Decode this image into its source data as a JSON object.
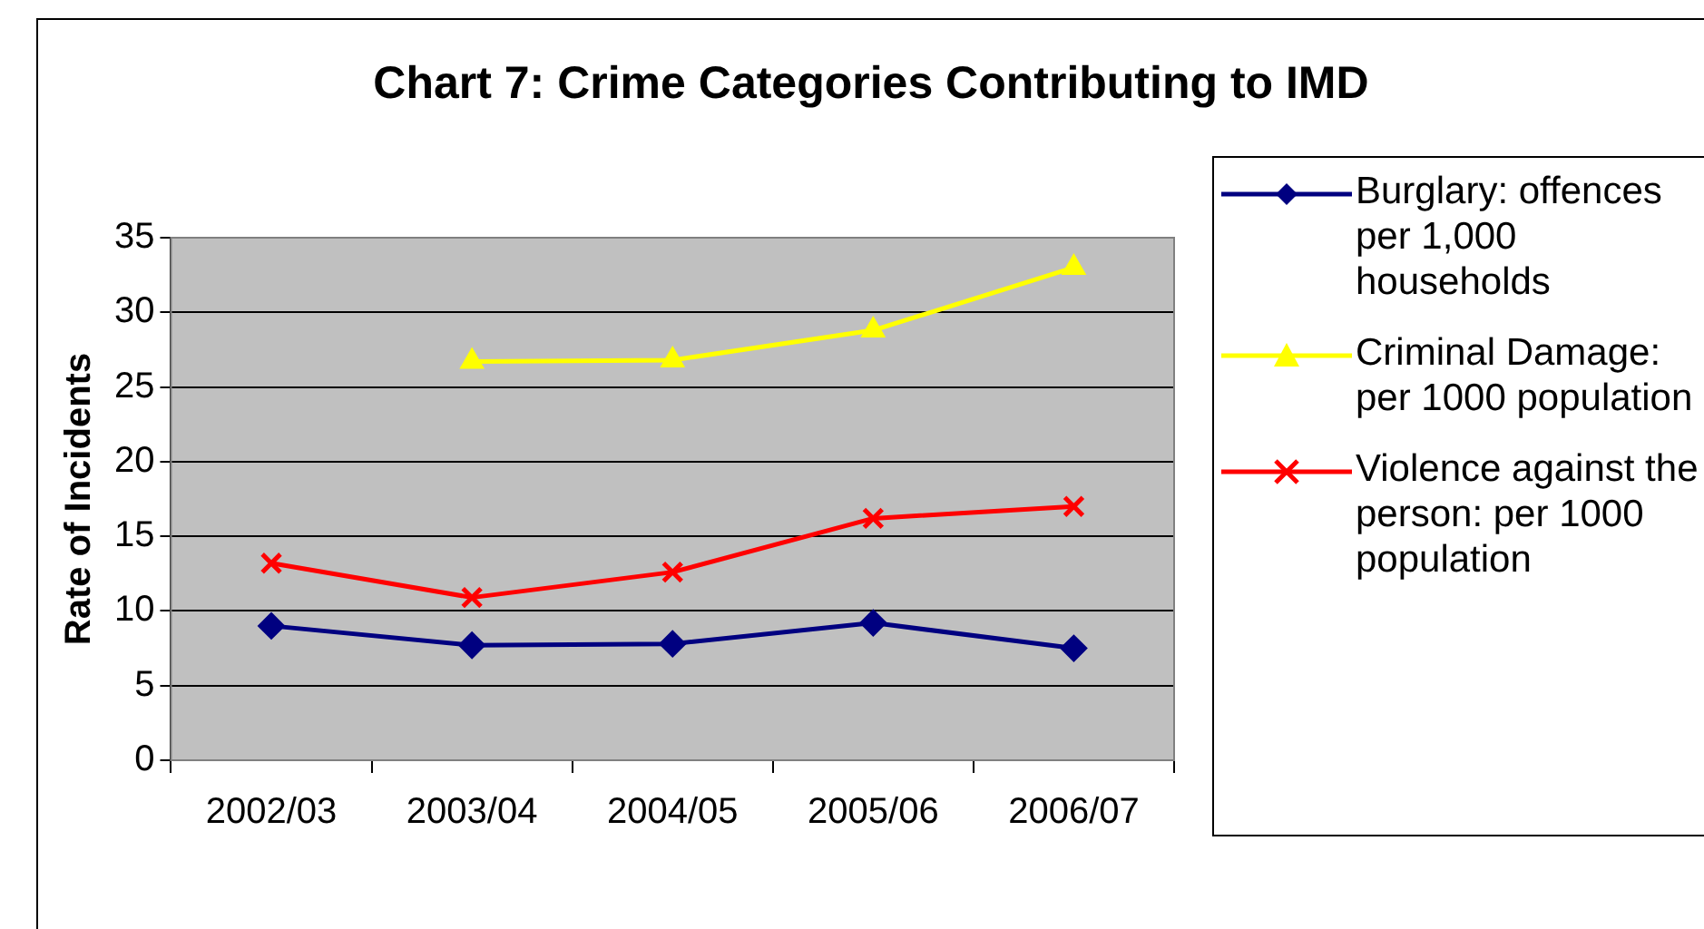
{
  "chart_data": {
    "type": "line",
    "title": "Chart 7: Crime Categories Contributing to IMD",
    "ylabel": "Rate of Incidents",
    "categories": [
      "2002/03",
      "2003/04",
      "2004/05",
      "2005/06",
      "2006/07"
    ],
    "series": [
      {
        "name": "Burglary: offences per 1,000 households",
        "color": "#000080",
        "marker": "diamond",
        "values": [
          9.0,
          7.7,
          7.8,
          9.2,
          7.5
        ]
      },
      {
        "name": "Criminal Damage: per 1000 population",
        "color": "#ffff00",
        "marker": "triangle",
        "values": [
          null,
          26.7,
          26.8,
          28.8,
          33.0
        ]
      },
      {
        "name": "Violence against the person: per 1000 population",
        "color": "#ff0000",
        "marker": "cross",
        "values": [
          13.2,
          10.9,
          12.6,
          16.2,
          17.0
        ]
      }
    ],
    "ylim": [
      0,
      35
    ],
    "yticks": [
      0,
      5,
      10,
      15,
      20,
      25,
      30,
      35
    ],
    "grid": "y",
    "legend": "right"
  }
}
